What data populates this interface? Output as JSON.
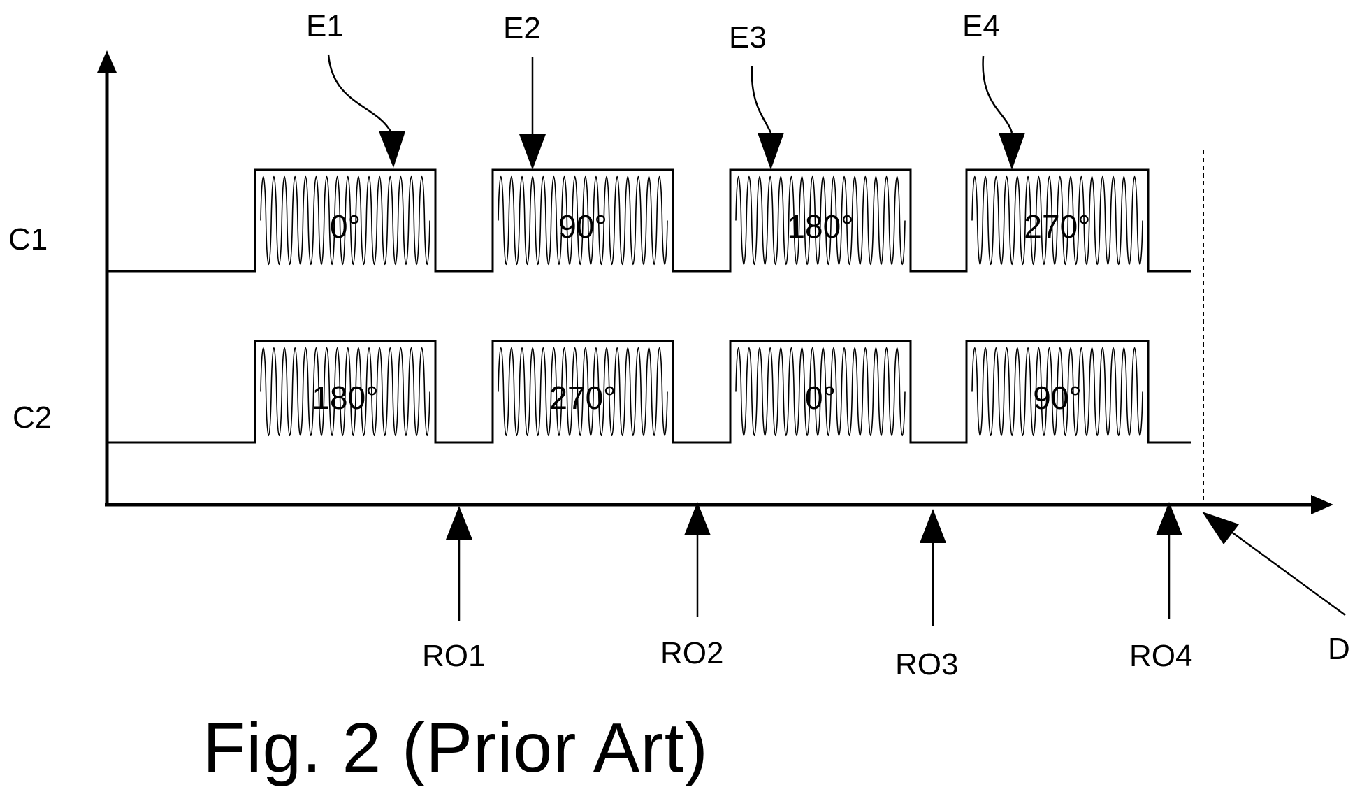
{
  "figure": {
    "caption": "Fig. 2 (Prior Art)",
    "channels": [
      {
        "label": "C1",
        "phases": [
          "0°",
          "90°",
          "180°",
          "270°"
        ]
      },
      {
        "label": "C2",
        "phases": [
          "180°",
          "270°",
          "0°",
          "90°"
        ]
      }
    ],
    "excitations": [
      "E1",
      "E2",
      "E3",
      "E4"
    ],
    "readouts": [
      "RO1",
      "RO2",
      "RO3",
      "RO4"
    ],
    "boundary_label": "D",
    "colors": {
      "ink": "#000000",
      "background": "#ffffff"
    }
  }
}
